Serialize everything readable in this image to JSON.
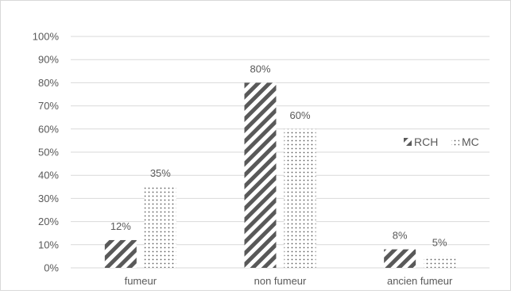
{
  "chart_data": {
    "type": "bar",
    "categories": [
      "fumeur",
      "non fumeur",
      "ancien fumeur"
    ],
    "series": [
      {
        "name": "RCH",
        "values": [
          12,
          80,
          8
        ],
        "labels": [
          "12%",
          "80%",
          "8%"
        ],
        "pattern": "diagonal-stripes",
        "color": "#595959"
      },
      {
        "name": "MC",
        "values": [
          35,
          60,
          5
        ],
        "labels": [
          "35%",
          "60%",
          "5%"
        ],
        "pattern": "dots",
        "color": "#595959"
      }
    ],
    "y_ticks": [
      "0%",
      "10%",
      "20%",
      "30%",
      "40%",
      "50%",
      "60%",
      "70%",
      "80%",
      "90%",
      "100%"
    ],
    "ylim": [
      0,
      100
    ],
    "grid": true,
    "gridline_color": "#d9d9d9",
    "legend_position": "right",
    "title": "",
    "xlabel": "",
    "ylabel": ""
  }
}
